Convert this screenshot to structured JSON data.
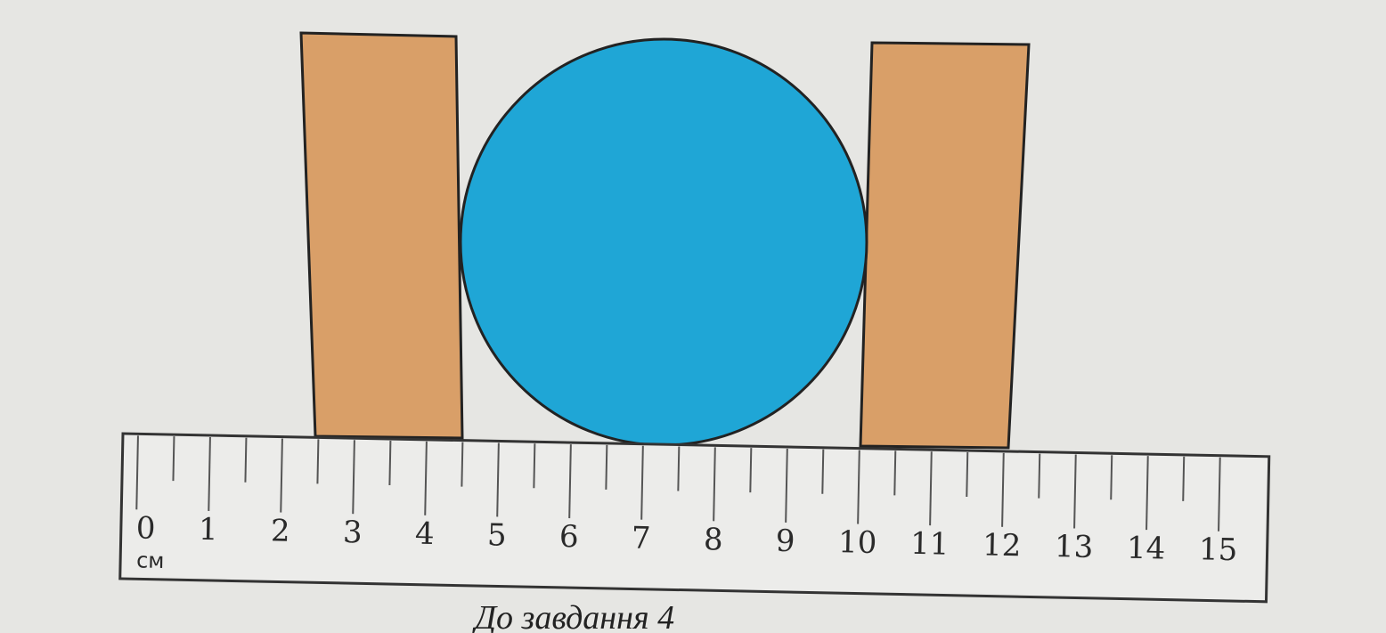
{
  "ruler": {
    "labels": [
      0,
      1,
      2,
      3,
      4,
      5,
      6,
      7,
      8,
      9,
      10,
      11,
      12,
      13,
      14,
      15
    ],
    "unit": "см"
  },
  "caption": "До завдання 4"
}
